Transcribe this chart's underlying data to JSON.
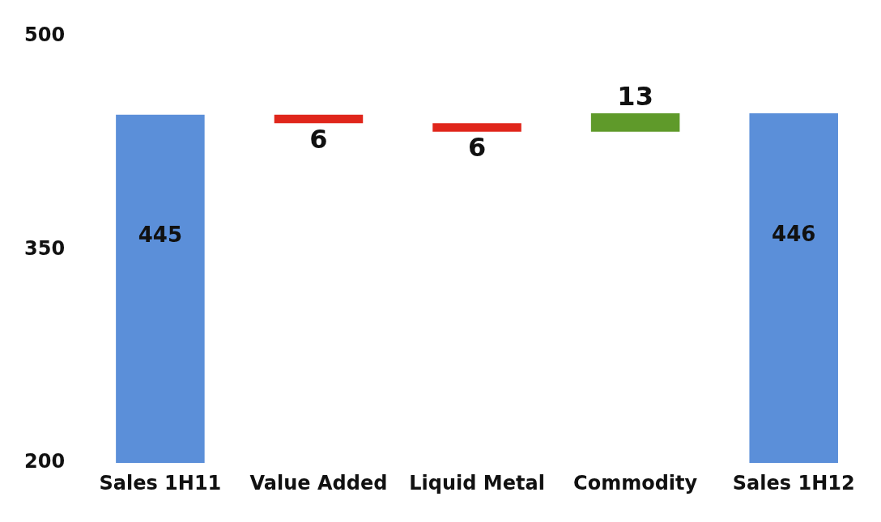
{
  "chart_data": {
    "type": "bar",
    "categories": [
      "Sales 1H11",
      "Value Added",
      "Liquid Metal",
      "Commodity",
      "Sales 1H12"
    ],
    "values": [
      245,
      -6,
      -6,
      13,
      246
    ],
    "base": [
      200,
      445,
      439,
      433,
      200
    ],
    "colors": [
      "#5b8fd9",
      "#e0261b",
      "#e0261b",
      "#5f9a2a",
      "#5b8fd9"
    ],
    "value_labels": [
      "445",
      "6",
      "6",
      "13",
      "446"
    ],
    "ylim": [
      200,
      500
    ],
    "yticks": [
      200,
      350,
      500
    ],
    "grid": false,
    "legend": false
  }
}
